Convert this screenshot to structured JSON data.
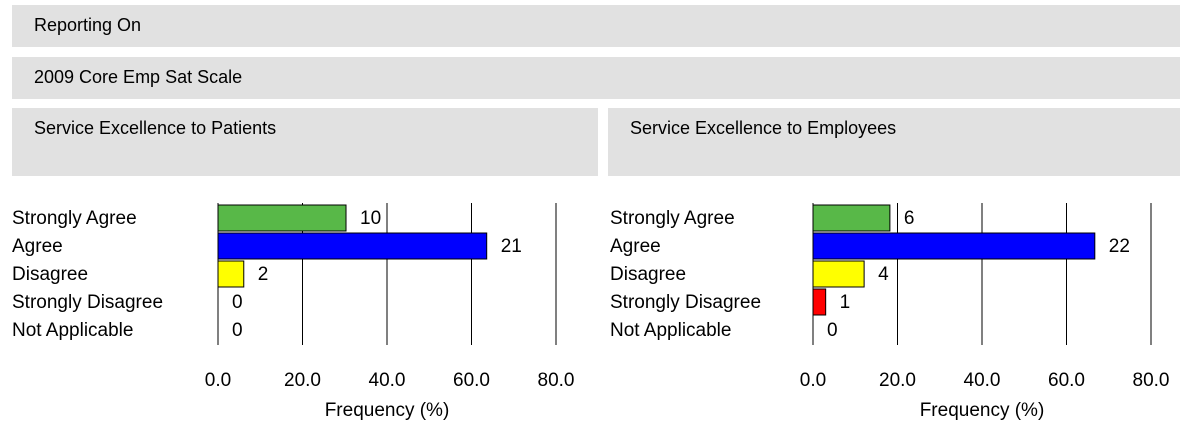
{
  "header": {
    "reporting_on": "Reporting On",
    "scale": "2009 Core Emp Sat Scale"
  },
  "chart_data": [
    {
      "type": "barh",
      "title": "Service Excellence to Patients",
      "categories": [
        "Strongly Agree",
        "Agree",
        "Disagree",
        "Strongly Disagree",
        "Not Applicable"
      ],
      "values": [
        30.3,
        63.6,
        6.1,
        0,
        0
      ],
      "counts": [
        10,
        21,
        2,
        0,
        0
      ],
      "colors": [
        "#58b848",
        "#0000ff",
        "#ffff00",
        "#ff0000",
        "#ffffff"
      ],
      "xlabel": "Frequency (%)",
      "xlim": [
        0,
        80
      ],
      "xticks": [
        {
          "value": 0,
          "label": "0.0"
        },
        {
          "value": 20,
          "label": "20.0"
        },
        {
          "value": 40,
          "label": "40.0"
        },
        {
          "value": 60,
          "label": "60.0"
        },
        {
          "value": 80,
          "label": "80.0"
        }
      ],
      "grid": true
    },
    {
      "type": "barh",
      "title": "Service Excellence to Employees",
      "categories": [
        "Strongly Agree",
        "Agree",
        "Disagree",
        "Strongly Disagree",
        "Not Applicable"
      ],
      "values": [
        18.2,
        66.7,
        12.1,
        3.0,
        0
      ],
      "counts": [
        6,
        22,
        4,
        1,
        0
      ],
      "colors": [
        "#58b848",
        "#0000ff",
        "#ffff00",
        "#ff0000",
        "#ffffff"
      ],
      "xlabel": "Frequency (%)",
      "xlim": [
        0,
        80
      ],
      "xticks": [
        {
          "value": 0,
          "label": "0.0"
        },
        {
          "value": 20,
          "label": "20.0"
        },
        {
          "value": 40,
          "label": "40.0"
        },
        {
          "value": 60,
          "label": "60.0"
        },
        {
          "value": 80,
          "label": "80.0"
        }
      ],
      "grid": true
    }
  ]
}
